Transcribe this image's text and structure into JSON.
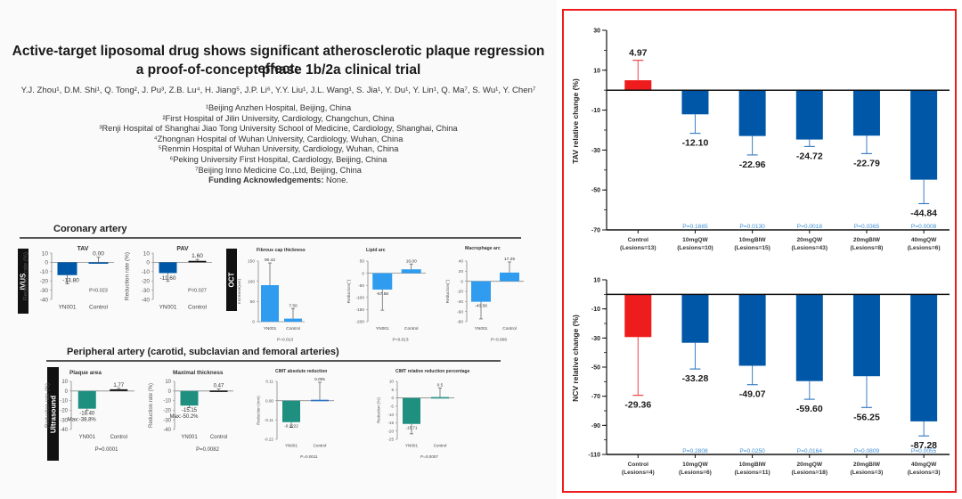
{
  "poster": {
    "title_line1": "Active-target liposomal drug shows significant atherosclerotic plaque regression effect:",
    "title_line2": "a proof-of-concept phase 1b/2a clinical trial",
    "authors": "Y.J. Zhou¹, D.M. Shi¹, Q. Tong², J. Pu³, Z.B. Lu⁴, H. Jiang⁵, J.P. Li⁶, Y.Y. Liu¹, J.L. Wang¹, S. Jia¹, Y. Du¹, Y. Lin¹, Q. Ma⁷, S. Wu¹, Y. Chen⁷",
    "affiliations": [
      "¹Beijing Anzhen Hospital, Beijing, China",
      "²First Hospital of Jilin University, Cardiology, Changchun, China",
      "³Renji Hospital of Shanghai Jiao Tong University School of Medicine, Cardiology, Shanghai, China",
      "⁴Zhongnan Hospital of Wuhan University, Cardiology, Wuhan, China",
      "⁵Renmin Hospital of Wuhan University, Cardiology, Wuhan, China",
      "⁶Peking University First Hospital, Cardiology, Beijing, China",
      "⁷Beijing Inno Medicine Co.,Ltd, Beijing, China"
    ],
    "funding_label": "Funding Acknowledgements:",
    "funding_value": " None.",
    "coronary_section": "Coronary artery",
    "peripheral_section": "Peripheral artery (carotid, subclavian and femoral arteries)",
    "tags": {
      "ivus": "IVUS",
      "oct": "OCT",
      "ultrasound": "Ultrasound"
    }
  },
  "colors": {
    "dark_blue": "#0057a8",
    "light_blue": "#2f9cf0",
    "teal": "#1f8f80",
    "red": "#ee1c1c",
    "pvalue_blue": "#3d8fd6"
  },
  "chart_data": [
    {
      "id": "tav_ivus",
      "type": "bar",
      "title": "TAV",
      "ylabel": "Reduction rate (%)",
      "categories": [
        "YN001",
        "Control"
      ],
      "values": [
        -13.8,
        0.0
      ],
      "labels": [
        "-13.80",
        "0.00"
      ],
      "errors": [
        9.5,
        5.5
      ],
      "ylim": [
        -40,
        10
      ],
      "yticks": [
        10,
        0,
        -10,
        -20,
        -30,
        -40
      ],
      "pvalue": "P=0.023",
      "colors": [
        "#0057a8",
        "#0057a8"
      ]
    },
    {
      "id": "pav_ivus",
      "type": "bar",
      "title": "PAV",
      "ylabel": "Reduction rate (%)",
      "categories": [
        "YN001",
        "Control"
      ],
      "values": [
        -11.6,
        1.6
      ],
      "labels": [
        "-11.60",
        "1.60"
      ],
      "errors": [
        9,
        1.5
      ],
      "ylim": [
        -40,
        10
      ],
      "yticks": [
        10,
        0,
        -10,
        -20,
        -30,
        -40
      ],
      "pvalue": "P=0.027",
      "colors": [
        "#0057a8",
        "#111111"
      ]
    },
    {
      "id": "fibrous_cap",
      "type": "bar",
      "title": "Fibrous cap thickness",
      "ylabel": "Increase(um)",
      "categories": [
        "YN001",
        "Control"
      ],
      "values": [
        90.42,
        7.5
      ],
      "labels": [
        "90.42",
        "7.50"
      ],
      "errors": [
        55,
        25
      ],
      "ylim": [
        0,
        150
      ],
      "yticks": [
        150,
        100,
        50,
        0
      ],
      "pvalue": "P=0.013",
      "colors": [
        "#2f9cf0",
        "#2f9cf0"
      ]
    },
    {
      "id": "lipid_arc",
      "type": "bar",
      "title": "Lipid arc",
      "ylabel": "Reduction(°)",
      "categories": [
        "YN001",
        "Control"
      ],
      "values": [
        -67.56,
        16.0
      ],
      "labels": [
        "-67.56",
        "16.00"
      ],
      "errors": [
        85,
        22
      ],
      "ylim": [
        -200,
        50
      ],
      "yticks": [
        50,
        0,
        -50,
        -100,
        -150,
        -200
      ],
      "pvalue": "P=0.013",
      "colors": [
        "#2f9cf0",
        "#2f9cf0"
      ]
    },
    {
      "id": "macrophage_arc",
      "type": "bar",
      "title": "Macrophage arc",
      "ylabel": "Reduction(°)",
      "categories": [
        "YN001",
        "Control"
      ],
      "values": [
        -40.58,
        17.25
      ],
      "labels": [
        "-40.58",
        "17.25"
      ],
      "errors": [
        34,
        21
      ],
      "ylim": [
        -80,
        40
      ],
      "yticks": [
        40,
        20,
        0,
        -20,
        -40,
        -60,
        -80
      ],
      "pvalue": "P=0.006",
      "colors": [
        "#2f9cf0",
        "#2f9cf0"
      ]
    },
    {
      "id": "plaque_area",
      "type": "bar",
      "title": "Plaque area",
      "ylabel": "Reduction rate (%)",
      "categories": [
        "YN001",
        "Control"
      ],
      "values": [
        -18.4,
        1.77
      ],
      "labels": [
        "-18.40",
        "1.77"
      ],
      "sublabel": "Max:-38.8%",
      "errors": [
        1.5,
        1.0
      ],
      "ylim": [
        -40,
        10
      ],
      "yticks": [
        10,
        0,
        -10,
        -20,
        -30,
        -40
      ],
      "pvalue": "P=0.0001",
      "colors": [
        "#1f8f80",
        "#111111"
      ]
    },
    {
      "id": "maximal_thickness",
      "type": "bar",
      "title": "Maximal thickness",
      "ylabel": "Reduction rate (%)",
      "categories": [
        "YN001",
        "Control"
      ],
      "values": [
        -15.15,
        0.47
      ],
      "labels": [
        "-15.15",
        "0.47"
      ],
      "sublabel": "Max:-50.2%",
      "errors": [
        2,
        1.5
      ],
      "ylim": [
        -40,
        10
      ],
      "yticks": [
        10,
        0,
        -10,
        -20,
        -30,
        -40
      ],
      "pvalue": "P=0.0082",
      "colors": [
        "#1f8f80",
        "#111111"
      ]
    },
    {
      "id": "cimt_absolute",
      "type": "bar",
      "title": "CIMT absolute reduction",
      "ylabel": "Reduction (mm)",
      "categories": [
        "YN001",
        "Control"
      ],
      "values": [
        -0.1222,
        0.005
      ],
      "labels": [
        "-0.1222",
        "0.005"
      ],
      "errors": [
        0.03,
        0.1
      ],
      "ylim": [
        -0.22,
        0.11
      ],
      "yticks": [
        0.11,
        0.0,
        -0.11,
        -0.22
      ],
      "ytick_labels": [
        "0.11",
        "0.00",
        "-0.11",
        "-0.22"
      ],
      "pvalue": "P=0.0011",
      "colors": [
        "#1f8f80",
        "#2b6fc4"
      ]
    },
    {
      "id": "cimt_relative",
      "type": "bar",
      "title": "CIMT relative reduction percentage",
      "ylabel": "Reduction (%)",
      "categories": [
        "YN001",
        "Control"
      ],
      "values": [
        -15.71,
        0.5
      ],
      "labels": [
        "-15.71",
        "0.5"
      ],
      "errors": [
        6,
        5.5
      ],
      "ylim": [
        -25,
        10
      ],
      "yticks": [
        10,
        5,
        0,
        -5,
        -10,
        -15,
        -20,
        -25
      ],
      "pvalue": "P=0.0007",
      "colors": [
        "#1f8f80",
        "#1f8f80"
      ]
    },
    {
      "id": "tav_relative",
      "type": "bar",
      "title": "",
      "ylabel": "TAV relative change (%)",
      "categories": [
        "Control\n(Lesions=13)",
        "10mgQW\n(Lesions=10)",
        "10mgBIW\n(Lesions=15)",
        "20mgQW\n(Lesions=43)",
        "20mgBIW\n(Lesions=8)",
        "40mgQW\n(Lesions=6)"
      ],
      "values": [
        4.97,
        -12.1,
        -22.96,
        -24.72,
        -22.79,
        -44.84
      ],
      "labels": [
        "4.97",
        "-12.10",
        "-22.96",
        "-24.72",
        "-22.79",
        "-44.84"
      ],
      "errors": [
        10,
        9.5,
        9.5,
        3.5,
        9,
        12
      ],
      "pvalues": [
        "",
        "P=0.1665",
        "P=0.0130",
        "P=0.0018",
        "P=0.0365",
        "P=0.0008"
      ],
      "ylim": [
        -70,
        30
      ],
      "yticks": [
        30,
        10,
        -10,
        -30,
        -50,
        -70
      ],
      "colors": [
        "#ee1c1c",
        "#0057a8",
        "#0057a8",
        "#0057a8",
        "#0057a8",
        "#0057a8"
      ]
    },
    {
      "id": "ncv_relative",
      "type": "bar",
      "title": "",
      "ylabel": "NCV relative change (%)",
      "categories": [
        "Control\n(Lesions=4)",
        "10mgQW\n(Lesions=6)",
        "10mgBIW\n(Lesions=11)",
        "20mgQW\n(Lesions=18)",
        "20mgBIW\n(Lesions=3)",
        "40mgQW\n(Lesions=3)"
      ],
      "values": [
        -29.36,
        -33.28,
        -49.07,
        -59.6,
        -56.25,
        -87.28
      ],
      "labels": [
        "-29.36",
        "-33.28",
        "-49.07",
        "-59.60",
        "-56.25",
        "-87.28"
      ],
      "errors": [
        40,
        18,
        13,
        12.5,
        21.5,
        10
      ],
      "pvalues": [
        "",
        "P=0.2808",
        "P=0.0250",
        "P=0.0164",
        "P=0.0809",
        "P=0.0055"
      ],
      "ylim": [
        -110,
        10
      ],
      "yticks": [
        10,
        -10,
        -30,
        -50,
        -70,
        -90,
        -110
      ],
      "colors": [
        "#ee1c1c",
        "#0057a8",
        "#0057a8",
        "#0057a8",
        "#0057a8",
        "#0057a8"
      ]
    }
  ]
}
